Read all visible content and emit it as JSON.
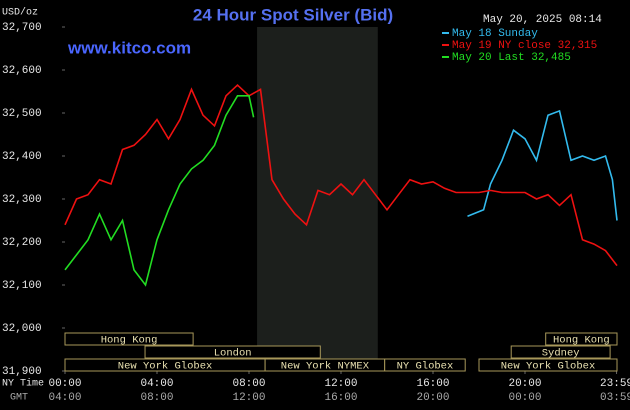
{
  "chart_data": {
    "type": "line",
    "title": "24 Hour Spot Silver (Bid)",
    "site": "www.kitco.com",
    "timestamp": "May 20, 2025 08:14",
    "unit": "USD/oz",
    "x_label": "NY Time",
    "x2_label": "GMT",
    "xlim": [
      0,
      24
    ],
    "ylim": [
      31900,
      32700
    ],
    "yticks": [
      {
        "value": 31900,
        "label": "31,900"
      },
      {
        "value": 32000,
        "label": "32,000"
      },
      {
        "value": 32100,
        "label": "32,100"
      },
      {
        "value": 32200,
        "label": "32,200"
      },
      {
        "value": 32300,
        "label": "32,300"
      },
      {
        "value": 32400,
        "label": "32,400"
      },
      {
        "value": 32500,
        "label": "32,500"
      },
      {
        "value": 32600,
        "label": "32,600"
      },
      {
        "value": 32700,
        "label": "32,700"
      }
    ],
    "xticks": [
      {
        "value": 0,
        "label": "00:00"
      },
      {
        "value": 4,
        "label": "04:00"
      },
      {
        "value": 8,
        "label": "08:00"
      },
      {
        "value": 12,
        "label": "12:00"
      },
      {
        "value": 16,
        "label": "16:00"
      },
      {
        "value": 20,
        "label": "20:00"
      },
      {
        "value": 23.98,
        "label": "23:59"
      }
    ],
    "x2tick_labels": [
      "04:00",
      "08:00",
      "12:00",
      "16:00",
      "20:00",
      "00:00",
      "03:59"
    ],
    "shaded_period": [
      8.35,
      13.6
    ],
    "series": [
      {
        "name": "May 18 Sunday",
        "color": "#33bbee",
        "x": [
          17.5,
          18.2,
          18.5,
          19,
          19.5,
          20,
          20.5,
          21,
          21.5,
          22,
          22.5,
          23,
          23.5,
          23.8,
          24
        ],
        "values": [
          32260,
          32275,
          32335,
          32390,
          32460,
          32440,
          32390,
          32495,
          32505,
          32390,
          32400,
          32390,
          32400,
          32345,
          32250
        ]
      },
      {
        "name": "May 19 NY close 32,315",
        "color": "#ee1111",
        "x": [
          0,
          0.5,
          1,
          1.5,
          2,
          2.5,
          3,
          3.5,
          4,
          4.5,
          5,
          5.5,
          6,
          6.5,
          7,
          7.5,
          8,
          8.5,
          9,
          9.5,
          10,
          10.5,
          11,
          11.5,
          12,
          12.5,
          13,
          13.5,
          14,
          14.5,
          15,
          15.5,
          16,
          16.5,
          17,
          17.5,
          18,
          18.5,
          19,
          19.5,
          20,
          20.5,
          21,
          21.5,
          22,
          22.5,
          23,
          23.5,
          24
        ],
        "values": [
          32240,
          32300,
          32310,
          32345,
          32335,
          32415,
          32425,
          32450,
          32485,
          32440,
          32485,
          32555,
          32495,
          32470,
          32540,
          32565,
          32540,
          32555,
          32345,
          32300,
          32265,
          32240,
          32320,
          32310,
          32335,
          32310,
          32345,
          32310,
          32275,
          32310,
          32345,
          32335,
          32340,
          32325,
          32315,
          32315,
          32315,
          32320,
          32315,
          32315,
          32315,
          32300,
          32310,
          32285,
          32310,
          32205,
          32195,
          32180,
          32145
        ]
      },
      {
        "name": "May 20 Last 32,485",
        "color": "#22dd22",
        "x": [
          0,
          0.5,
          1,
          1.5,
          2,
          2.5,
          3,
          3.5,
          4,
          4.5,
          5,
          5.5,
          6,
          6.5,
          7,
          7.5,
          8,
          8.2
        ],
        "values": [
          32135,
          32170,
          32205,
          32265,
          32205,
          32250,
          32135,
          32100,
          32205,
          32275,
          32335,
          32370,
          32390,
          32425,
          32495,
          32540,
          32540,
          32490
        ]
      }
    ],
    "sessions": [
      [
        {
          "label": "Hong Kong",
          "start": 0,
          "end": 5.57
        },
        {
          "label": "Hong Kong",
          "start": 20.9,
          "end": 24
        }
      ],
      [
        {
          "label": "London",
          "start": 3.48,
          "end": 11.1
        },
        {
          "label": "Sydney",
          "start": 19.4,
          "end": 23.7
        }
      ],
      [
        {
          "label": "New York Globex",
          "start": 0,
          "end": 8.7
        },
        {
          "label": "New York NYMEX",
          "start": 8.7,
          "end": 13.9
        },
        {
          "label": "NY Globex",
          "start": 13.9,
          "end": 17.4
        },
        {
          "label": "New York Globex",
          "start": 18,
          "end": 24
        }
      ]
    ]
  }
}
